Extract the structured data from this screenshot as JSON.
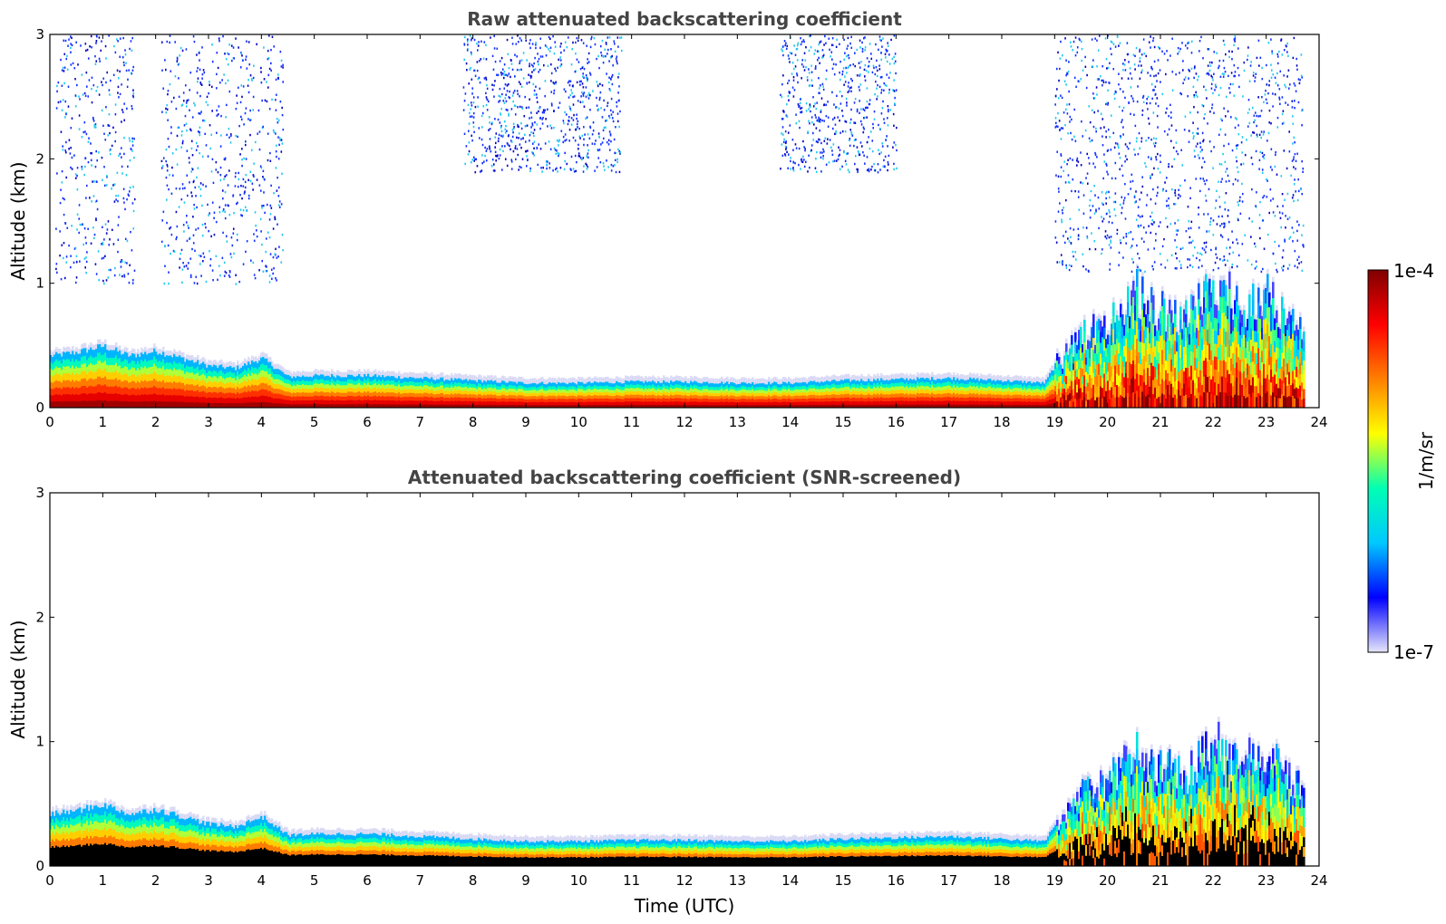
{
  "chart_data": [
    {
      "type": "heatmap",
      "title": "Raw attenuated backscattering coefficient",
      "xlabel": "",
      "ylabel": "Altitude (km)",
      "xlim": [
        0,
        24
      ],
      "ylim": [
        0,
        3
      ],
      "xticks": [
        "0",
        "1",
        "2",
        "3",
        "4",
        "5",
        "6",
        "7",
        "8",
        "9",
        "10",
        "11",
        "12",
        "13",
        "14",
        "15",
        "16",
        "17",
        "18",
        "19",
        "20",
        "21",
        "22",
        "23",
        "24"
      ],
      "yticks": [
        "0",
        "1",
        "2",
        "3"
      ],
      "screened": false,
      "layer_top_km": {
        "x": [
          0,
          0.5,
          1,
          1.5,
          2,
          2.5,
          3,
          3.5,
          4,
          4.5,
          5,
          6,
          7,
          8,
          9,
          10,
          11,
          12,
          13,
          14,
          15,
          16,
          17,
          18,
          18.8,
          19,
          19.5,
          20,
          20.5,
          21,
          21.5,
          22,
          22.5,
          23,
          23.7
        ],
        "y": [
          0.42,
          0.45,
          0.5,
          0.42,
          0.46,
          0.4,
          0.34,
          0.32,
          0.4,
          0.25,
          0.26,
          0.26,
          0.24,
          0.22,
          0.2,
          0.2,
          0.21,
          0.21,
          0.2,
          0.2,
          0.22,
          0.23,
          0.24,
          0.22,
          0.2,
          0.35,
          0.6,
          0.7,
          0.95,
          0.8,
          0.75,
          1.0,
          0.85,
          0.9,
          0.6
        ]
      },
      "noise_regions_hours": [
        [
          0.1,
          1.6
        ],
        [
          2.1,
          4.4
        ],
        [
          7.8,
          10.8
        ],
        [
          13.8,
          16.0
        ],
        [
          19.0,
          23.7
        ]
      ]
    },
    {
      "type": "heatmap",
      "title": "Attenuated backscattering coefficient (SNR-screened)",
      "xlabel": "Time (UTC)",
      "ylabel": "Altitude (km)",
      "xlim": [
        0,
        24
      ],
      "ylim": [
        0,
        3
      ],
      "xticks": [
        "0",
        "1",
        "2",
        "3",
        "4",
        "5",
        "6",
        "7",
        "8",
        "9",
        "10",
        "11",
        "12",
        "13",
        "14",
        "15",
        "16",
        "17",
        "18",
        "19",
        "20",
        "21",
        "22",
        "23",
        "24"
      ],
      "yticks": [
        "0",
        "1",
        "2",
        "3"
      ],
      "screened": true,
      "layer_top_km": {
        "x": [
          0,
          0.5,
          1,
          1.5,
          2,
          2.5,
          3,
          3.5,
          4,
          4.5,
          5,
          6,
          7,
          8,
          9,
          10,
          11,
          12,
          13,
          14,
          15,
          16,
          17,
          18,
          18.8,
          19,
          19.5,
          20,
          20.5,
          21,
          21.5,
          22,
          22.5,
          23,
          23.7
        ],
        "y": [
          0.42,
          0.45,
          0.5,
          0.42,
          0.46,
          0.4,
          0.34,
          0.32,
          0.4,
          0.25,
          0.26,
          0.26,
          0.24,
          0.22,
          0.2,
          0.2,
          0.21,
          0.21,
          0.2,
          0.2,
          0.22,
          0.23,
          0.24,
          0.22,
          0.2,
          0.35,
          0.6,
          0.7,
          0.95,
          0.8,
          0.75,
          1.0,
          0.85,
          0.9,
          0.6
        ]
      }
    }
  ],
  "colorbar": {
    "label": "1/m/sr",
    "max_label": "1e-4",
    "min_label": "1e-7",
    "scale": "log",
    "range": [
      1e-07,
      0.0001
    ],
    "colormap": [
      "#e6e6fa",
      "#0000ff",
      "#00c8ff",
      "#00ffb4",
      "#ffff00",
      "#ff8000",
      "#ff0000",
      "#800000"
    ]
  },
  "colors": {
    "axes": "#000000",
    "title": "#444444",
    "screened_core": "#000000",
    "raw_core": "#8b0000"
  }
}
